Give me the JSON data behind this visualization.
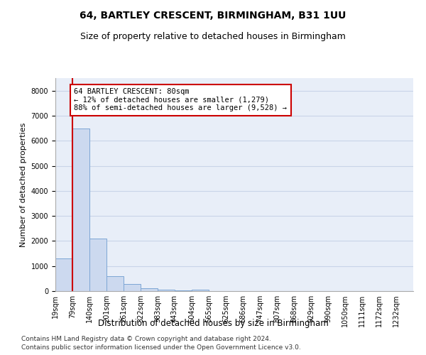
{
  "title1": "64, BARTLEY CRESCENT, BIRMINGHAM, B31 1UU",
  "title2": "Size of property relative to detached houses in Birmingham",
  "xlabel": "Distribution of detached houses by size in Birmingham",
  "ylabel": "Number of detached properties",
  "footnote1": "Contains HM Land Registry data © Crown copyright and database right 2024.",
  "footnote2": "Contains public sector information licensed under the Open Government Licence v3.0.",
  "bin_labels": [
    "19sqm",
    "79sqm",
    "140sqm",
    "201sqm",
    "261sqm",
    "322sqm",
    "383sqm",
    "443sqm",
    "504sqm",
    "565sqm",
    "625sqm",
    "686sqm",
    "747sqm",
    "807sqm",
    "868sqm",
    "929sqm",
    "990sqm",
    "1050sqm",
    "1111sqm",
    "1172sqm",
    "1232sqm"
  ],
  "bar_heights": [
    1300,
    6500,
    2100,
    600,
    280,
    100,
    60,
    30,
    60,
    0,
    0,
    0,
    0,
    0,
    0,
    0,
    0,
    0,
    0,
    0,
    0
  ],
  "bar_color": "#ccd9ef",
  "bar_edge_color": "#7da6d5",
  "vline_x_index": 1,
  "annotation_text": "64 BARTLEY CRESCENT: 80sqm\n← 12% of detached houses are smaller (1,279)\n88% of semi-detached houses are larger (9,528) →",
  "annotation_box_color": "white",
  "annotation_border_color": "#cc0000",
  "vline_color": "#cc0000",
  "ylim": [
    0,
    8500
  ],
  "yticks": [
    0,
    1000,
    2000,
    3000,
    4000,
    5000,
    6000,
    7000,
    8000
  ],
  "grid_color": "#c8d4e8",
  "background_color": "#e8eef8",
  "title1_fontsize": 10,
  "title2_fontsize": 9,
  "xlabel_fontsize": 8.5,
  "ylabel_fontsize": 8,
  "tick_fontsize": 7,
  "annot_fontsize": 7.5,
  "footnote_fontsize": 6.5
}
